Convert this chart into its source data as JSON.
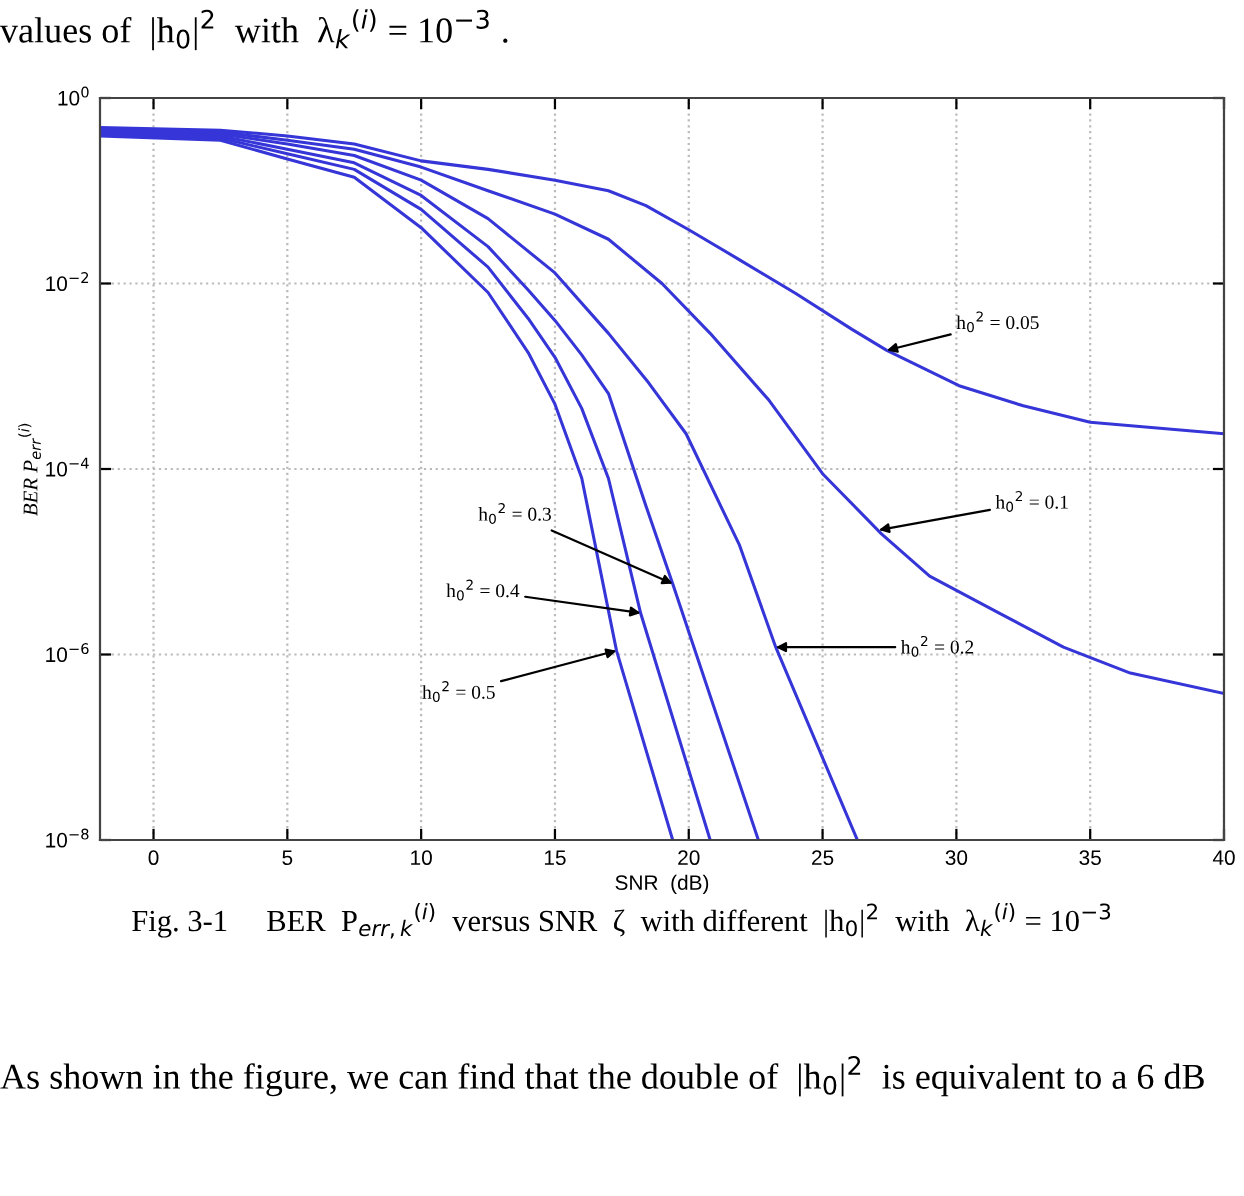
{
  "chart_data": {
    "type": "line",
    "xlabel": "SNR  (dB)",
    "ylabel": "BER P$_{err}$$^{(i)}$",
    "log": "y",
    "grid": true,
    "line_style": "solid",
    "marker": "none",
    "xlim": [
      -2,
      40
    ],
    "xticks": [
      0,
      5,
      10,
      15,
      20,
      25,
      30,
      35,
      40
    ],
    "ylim": [
      1e-08,
      1
    ],
    "yticks": [
      {
        "value": 1,
        "label": "10$^{0}$"
      },
      {
        "value": 0.01,
        "label": "10$^{−2}$"
      },
      {
        "value": 0.0001,
        "label": "10$^{−4}$"
      },
      {
        "value": 1e-06,
        "label": "10$^{−6}$"
      },
      {
        "value": 1e-08,
        "label": "10$^{−8}$"
      }
    ],
    "series": [
      {
        "color": "#3535d8",
        "x": [
          -2,
          2.5,
          5,
          7.5,
          10,
          12.5,
          15,
          17,
          18.4,
          20,
          21.9,
          24,
          26.1,
          27.4,
          30.1,
          32.5,
          35,
          40
        ],
        "values": [
          0.48,
          0.45,
          0.39,
          0.32,
          0.21,
          0.17,
          0.13,
          0.1,
          0.069,
          0.038,
          0.018,
          0.0078,
          0.0032,
          0.0019,
          0.00079,
          0.00048,
          0.00032,
          0.00024
        ]
      },
      {
        "color": "#3535d8",
        "x": [
          -2,
          2.5,
          5,
          7.5,
          10,
          12.5,
          15,
          17,
          19,
          20.8,
          23,
          25,
          27.2,
          29,
          31.6,
          34,
          36.5,
          40
        ],
        "values": [
          0.46,
          0.43,
          0.35,
          0.28,
          0.18,
          0.1,
          0.056,
          0.03,
          0.01,
          0.0029,
          0.00055,
          8.9e-05,
          2e-05,
          7e-06,
          2.8e-06,
          1.2e-06,
          6.3e-07,
          3.8e-07
        ]
      },
      {
        "color": "#3535d8",
        "x": [
          -2,
          2.5,
          5,
          7.5,
          10,
          12.5,
          15,
          17,
          18.5,
          19.9,
          21.9,
          23.25,
          26.3
        ],
        "values": [
          0.44,
          0.41,
          0.32,
          0.24,
          0.13,
          0.05,
          0.013,
          0.0029,
          0.00085,
          0.00024,
          1.5e-05,
          1.2e-06,
          1e-08
        ]
      },
      {
        "color": "#3535d8",
        "x": [
          -2,
          2.5,
          5,
          7.5,
          10,
          12.5,
          14,
          15,
          16,
          17,
          18.4,
          19.4,
          22.6
        ],
        "values": [
          0.43,
          0.39,
          0.28,
          0.2,
          0.089,
          0.025,
          0.0085,
          0.004,
          0.0017,
          0.00065,
          4e-05,
          5.8e-06,
          1e-08
        ]
      },
      {
        "color": "#3535d8",
        "x": [
          -2,
          2.5,
          5,
          7.5,
          10,
          12.5,
          14,
          15,
          16,
          17,
          18.2,
          20.8
        ],
        "values": [
          0.41,
          0.37,
          0.25,
          0.17,
          0.063,
          0.015,
          0.0042,
          0.0016,
          0.00045,
          7.9e-05,
          2.8e-06,
          1e-08
        ]
      },
      {
        "color": "#3535d8",
        "x": [
          -2,
          2.5,
          5,
          7.5,
          10,
          12.5,
          14,
          15,
          16,
          17.3,
          19.4
        ],
        "values": [
          0.39,
          0.35,
          0.22,
          0.14,
          0.04,
          0.008,
          0.0018,
          0.0005,
          8e-05,
          1.1e-06,
          1e-08
        ]
      }
    ],
    "annotations": [
      {
        "text": "h$_{0}$$^{2}$ = 0.05",
        "x": 27.4,
        "y": 0.0019
      },
      {
        "text": "h$_{0}$$^{2}$ = 0.1",
        "x": 27.1,
        "y": 2.2e-05
      },
      {
        "text": "h$_{0}$$^{2}$ = 0.2",
        "x": 23.25,
        "y": 1.2e-06
      },
      {
        "text": "h$_{0}$$^{2}$ = 0.3",
        "x": 19.4,
        "y": 5.8e-06
      },
      {
        "text": "h$_{0}$$^{2}$ = 0.4",
        "x": 18.2,
        "y": 2.8e-06
      },
      {
        "text": "h$_{0}$$^{2}$ = 0.5",
        "x": 17.3,
        "y": 1.1e-06
      },
      "values of  |h$_{0}$|$^{2}$  with  λ$_{k}$$^{(i)}$ = 10$^{−3}$ .",
      "Fig. 3-1     BER  P$_{err,k}$$^{(i)}$  versus SNR  ζ  with different  |h$_{0}$|$^{2}$  with  λ$_{k}$$^{(i)}$ = 10$^{−3}$",
      "As shown in the figure, we can find that the double of  |h$_{0}$|$^{2}$  is equivalent to a 6 dB"
    ]
  }
}
